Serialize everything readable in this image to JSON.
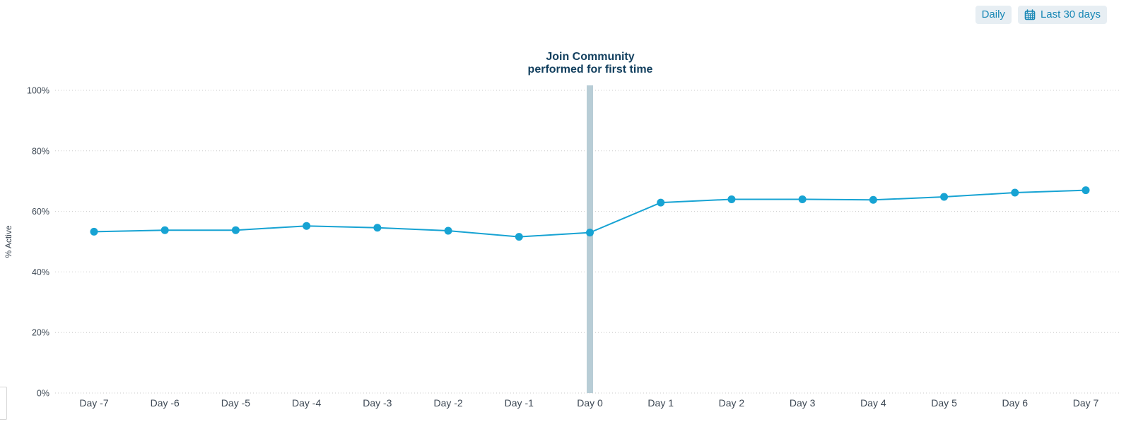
{
  "controls": {
    "granularity_label": "Daily",
    "date_range_label": "Last 30 days"
  },
  "chart_data": {
    "type": "line",
    "title_line1": "Join Community",
    "title_line2": "performed for first time",
    "ylabel": "% Active",
    "categories": [
      "Day -7",
      "Day -6",
      "Day -5",
      "Day -4",
      "Day -3",
      "Day -2",
      "Day -1",
      "Day 0",
      "Day 1",
      "Day 2",
      "Day 3",
      "Day 4",
      "Day 5",
      "Day 6",
      "Day 7"
    ],
    "values": [
      53.3,
      53.8,
      53.8,
      55.2,
      54.6,
      53.6,
      51.6,
      53.0,
      62.9,
      64.0,
      64.0,
      63.8,
      64.8,
      66.2,
      67.0
    ],
    "y_ticks": [
      "100%",
      "80%",
      "60%",
      "40%",
      "20%",
      "0%"
    ],
    "y_tick_values": [
      100,
      80,
      60,
      40,
      20,
      0
    ],
    "ylim": [
      0,
      100
    ],
    "grid": "horizontal-dotted",
    "legend": "none",
    "event_marker_category": "Day 0",
    "colors": {
      "line": "#17a3d3",
      "point": "#17a3d3",
      "event_marker": "#b8cdd6",
      "title": "#123f5e",
      "axis_text": "#3d4854",
      "grid": "#c9c9c9",
      "button_bg": "#e7eef3",
      "button_text": "#1787b5"
    }
  }
}
